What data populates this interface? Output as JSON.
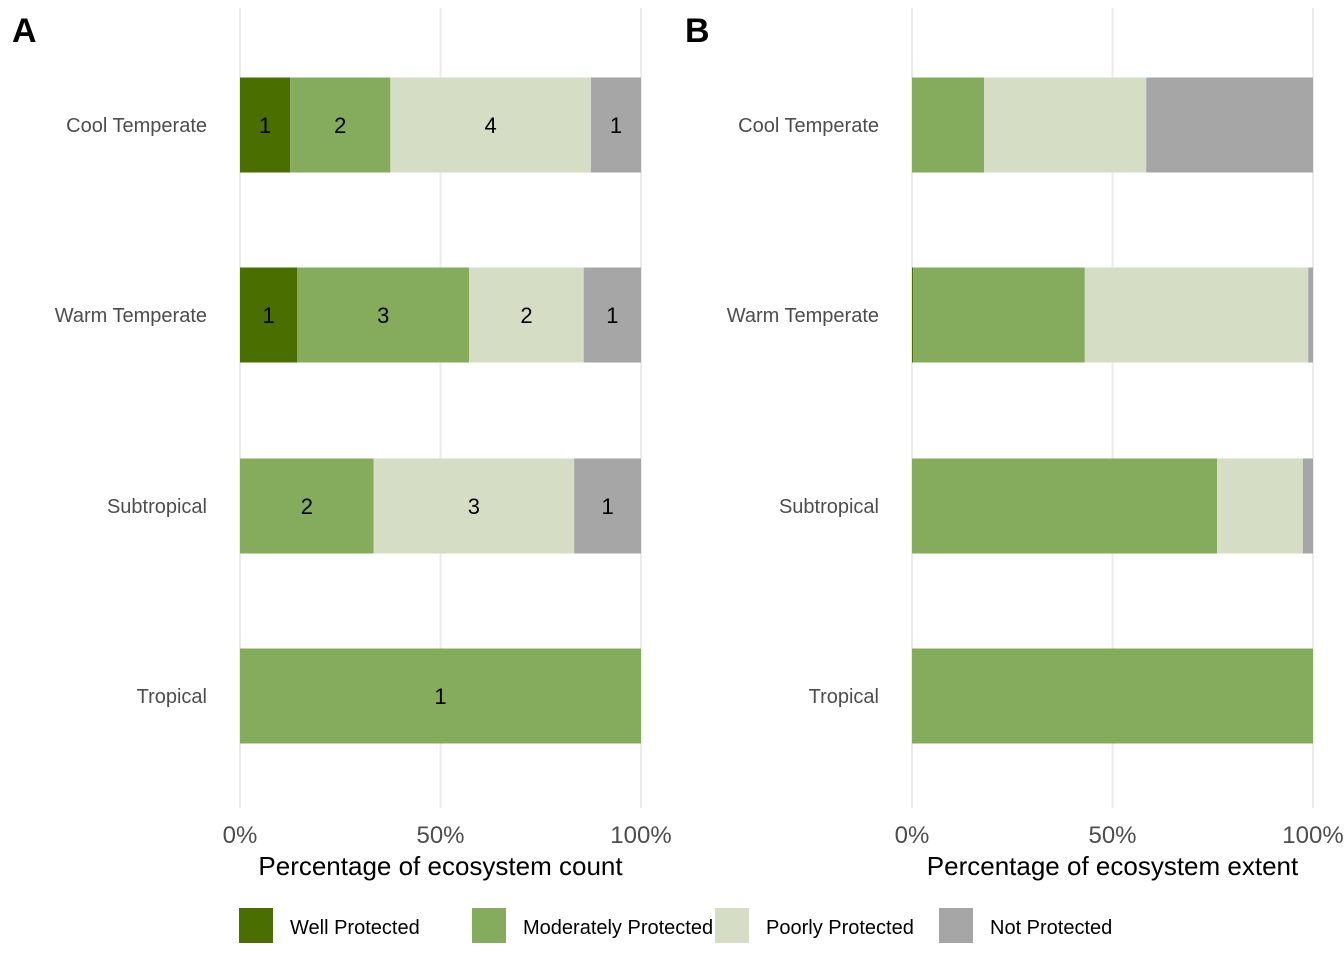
{
  "chart_data": [
    {
      "type": "bar",
      "orientation": "horizontal-stacked",
      "panel": "A",
      "title": "",
      "xlabel": "Percentage of ecosystem count",
      "ylabel": "",
      "xlim": [
        0,
        100
      ],
      "xticks": [
        "0%",
        "50%",
        "100%"
      ],
      "grid": true,
      "categories": [
        "Cool Temperate",
        "Warm Temperate",
        "Subtropical",
        "Tropical"
      ],
      "series": [
        {
          "name": "Well Protected",
          "counts": [
            1,
            1,
            0,
            0
          ],
          "values": [
            12.5,
            14.29,
            0,
            0
          ]
        },
        {
          "name": "Moderately Protected",
          "counts": [
            2,
            3,
            2,
            1
          ],
          "values": [
            25.0,
            42.86,
            33.33,
            100
          ]
        },
        {
          "name": "Poorly Protected",
          "counts": [
            4,
            2,
            3,
            0
          ],
          "values": [
            50.0,
            28.57,
            50.0,
            0
          ]
        },
        {
          "name": "Not Protected",
          "counts": [
            1,
            1,
            1,
            0
          ],
          "values": [
            12.5,
            14.29,
            16.67,
            0
          ]
        }
      ]
    },
    {
      "type": "bar",
      "orientation": "horizontal-stacked",
      "panel": "B",
      "title": "",
      "xlabel": "Percentage of ecosystem extent",
      "ylabel": "",
      "xlim": [
        0,
        100
      ],
      "xticks": [
        "0%",
        "50%",
        "100%"
      ],
      "grid": true,
      "categories": [
        "Cool Temperate",
        "Warm Temperate",
        "Subtropical",
        "Tropical"
      ],
      "series": [
        {
          "name": "Well Protected",
          "values": [
            0,
            0.3,
            0,
            0
          ]
        },
        {
          "name": "Moderately Protected",
          "values": [
            18.0,
            42.8,
            76.1,
            100
          ]
        },
        {
          "name": "Poorly Protected",
          "values": [
            40.4,
            55.7,
            21.4,
            0
          ]
        },
        {
          "name": "Not Protected",
          "values": [
            41.6,
            1.2,
            2.5,
            0
          ]
        }
      ]
    }
  ],
  "legend": {
    "position": "bottom",
    "items": [
      {
        "label": "Well Protected",
        "color": "#4a6f00"
      },
      {
        "label": "Moderately Protected",
        "color": "#85ab5c"
      },
      {
        "label": "Poorly Protected",
        "color": "#d5ddc4"
      },
      {
        "label": "Not Protected",
        "color": "#a6a6a6"
      }
    ]
  }
}
